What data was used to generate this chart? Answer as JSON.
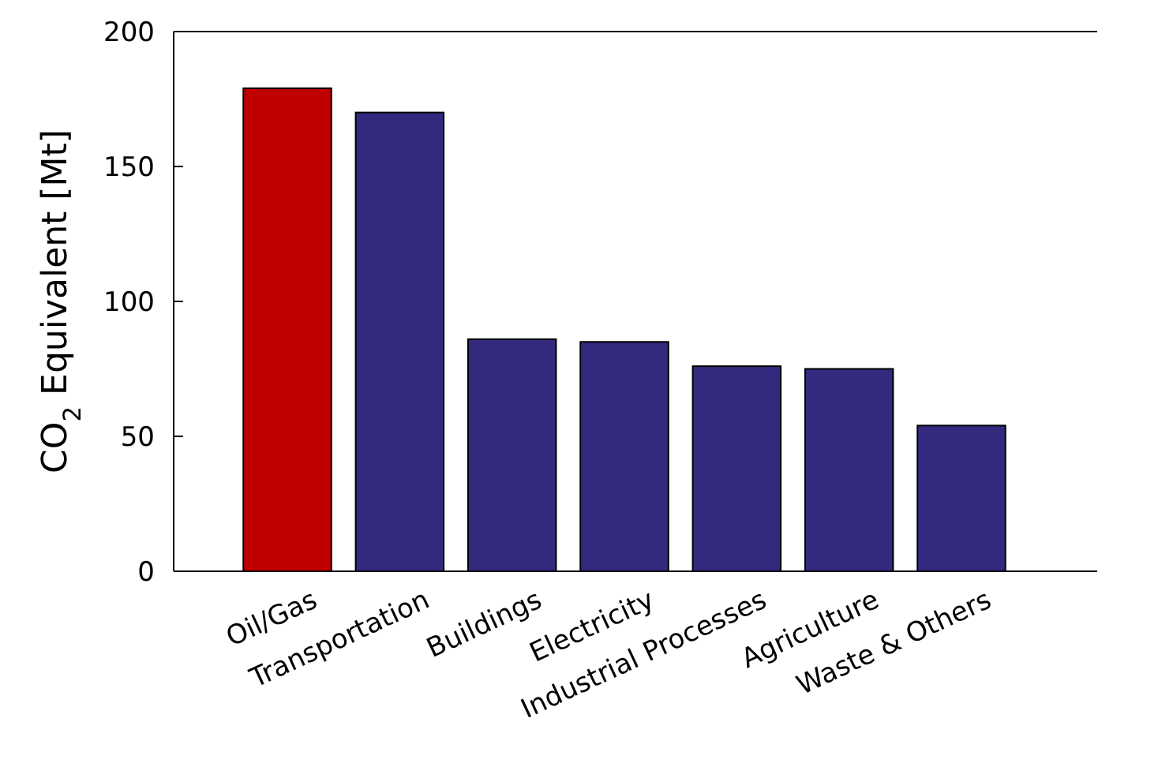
{
  "chart_data": {
    "type": "bar",
    "ylabel": "CO$_{2}$ Equivalent [Mt]",
    "categories": [
      "Oil/Gas",
      "Transportation",
      "Buildings",
      "Electricity",
      "Industrial Processes",
      "Agriculture",
      "Waste & Others"
    ],
    "values": [
      179,
      170,
      86,
      85,
      76,
      75,
      54
    ],
    "colors": [
      "#c00000",
      "#332a80",
      "#332a80",
      "#332a80",
      "#332a80",
      "#332a80",
      "#332a80"
    ],
    "ylim": [
      0,
      200
    ],
    "yticks": [
      0,
      50,
      100,
      150,
      200
    ],
    "grid": false
  }
}
